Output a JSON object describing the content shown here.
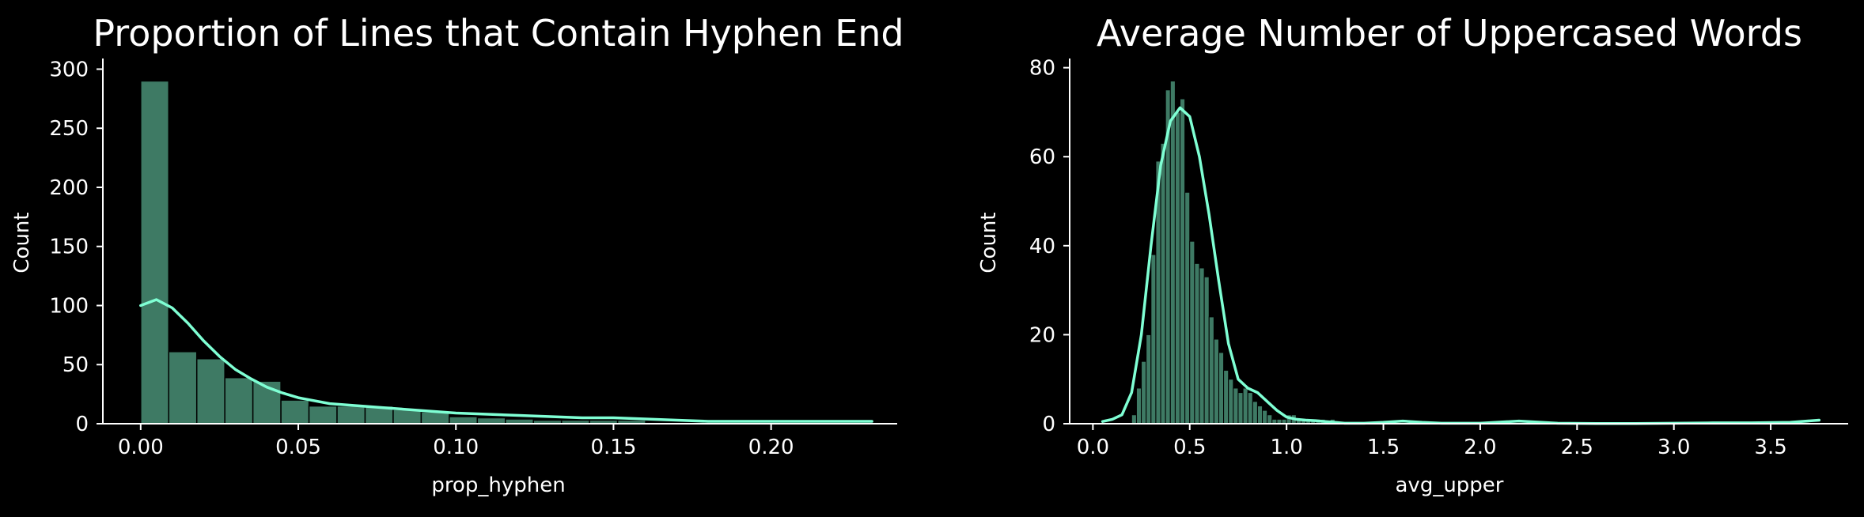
{
  "colors": {
    "background": "#000000",
    "bar_fill": "#3e7a64",
    "bar_edge": "#000000",
    "kde_line": "#7fffd4",
    "text": "#ffffff"
  },
  "chart_data": [
    {
      "type": "bar",
      "title": "Proportion of Lines that Contain Hyphen End",
      "xlabel": "prop_hyphen",
      "ylabel": "Count",
      "xlim": [
        -0.012,
        0.24
      ],
      "ylim": [
        0,
        305
      ],
      "xticks": [
        0.0,
        0.05,
        0.1,
        0.15,
        0.2
      ],
      "xtick_labels": [
        "0.00",
        "0.05",
        "0.10",
        "0.15",
        "0.20"
      ],
      "yticks": [
        0,
        50,
        100,
        150,
        200,
        250,
        300
      ],
      "ytick_labels": [
        "0",
        "50",
        "100",
        "150",
        "200",
        "250",
        "300"
      ],
      "bin_edges": [
        0.0,
        0.0089,
        0.0178,
        0.0267,
        0.0356,
        0.0445,
        0.0534,
        0.0623,
        0.0712,
        0.0801,
        0.089,
        0.0979,
        0.1068,
        0.1157,
        0.1246,
        0.1335,
        0.1424,
        0.1513,
        0.1602
      ],
      "values": [
        290,
        61,
        55,
        39,
        36,
        20,
        15,
        15,
        15,
        12,
        10,
        6,
        5,
        4,
        3,
        3,
        3,
        3
      ],
      "kde": {
        "x": [
          0.0,
          0.005,
          0.01,
          0.015,
          0.02,
          0.025,
          0.03,
          0.035,
          0.04,
          0.045,
          0.05,
          0.06,
          0.07,
          0.08,
          0.09,
          0.1,
          0.11,
          0.12,
          0.13,
          0.14,
          0.15,
          0.16,
          0.17,
          0.18,
          0.19,
          0.2,
          0.21,
          0.22,
          0.232
        ],
        "y": [
          100,
          105,
          98,
          85,
          70,
          57,
          46,
          38,
          31,
          26,
          22,
          17,
          15,
          13,
          11,
          9,
          8,
          7,
          6,
          5,
          5,
          4,
          3,
          2,
          2,
          2,
          2,
          2,
          2
        ]
      }
    },
    {
      "type": "bar",
      "title": "Average Number of Uppercased Words",
      "xlabel": "avg_upper",
      "ylabel": "Count",
      "xlim": [
        -0.12,
        3.9
      ],
      "ylim": [
        0,
        81
      ],
      "xticks": [
        0.0,
        0.5,
        1.0,
        1.5,
        2.0,
        2.5,
        3.0,
        3.5
      ],
      "xtick_labels": [
        "0.0",
        "0.5",
        "1.0",
        "1.5",
        "2.0",
        "2.5",
        "3.0",
        "3.5"
      ],
      "yticks": [
        0,
        20,
        40,
        60,
        80
      ],
      "ytick_labels": [
        "0",
        "20",
        "40",
        "60",
        "80"
      ],
      "bin_edges": [
        0.2,
        0.225,
        0.25,
        0.275,
        0.3,
        0.325,
        0.35,
        0.375,
        0.4,
        0.425,
        0.45,
        0.475,
        0.5,
        0.525,
        0.55,
        0.575,
        0.6,
        0.625,
        0.65,
        0.675,
        0.7,
        0.725,
        0.75,
        0.775,
        0.8,
        0.825,
        0.85,
        0.875,
        0.9,
        0.925,
        0.95,
        0.975,
        1.0,
        1.025,
        1.05,
        1.075,
        1.1,
        1.125,
        1.15,
        1.175,
        1.2,
        1.225,
        1.25
      ],
      "values": [
        2,
        8,
        14,
        20,
        38,
        59,
        63,
        75,
        77,
        70,
        73,
        52,
        41,
        36,
        35,
        33,
        24,
        19,
        16,
        12,
        10,
        8,
        7,
        8,
        7,
        5,
        4,
        3,
        2,
        1,
        1,
        1,
        2,
        2,
        1,
        1,
        1,
        1,
        1,
        1,
        0,
        1
      ],
      "kde": {
        "x": [
          0.05,
          0.1,
          0.15,
          0.2,
          0.25,
          0.3,
          0.35,
          0.4,
          0.45,
          0.5,
          0.55,
          0.6,
          0.65,
          0.7,
          0.75,
          0.8,
          0.85,
          0.9,
          0.95,
          1.0,
          1.05,
          1.1,
          1.15,
          1.2,
          1.25,
          1.3,
          1.4,
          1.5,
          1.6,
          1.7,
          1.8,
          2.0,
          2.2,
          2.4,
          2.6,
          2.8,
          3.0,
          3.2,
          3.4,
          3.6,
          3.75
        ],
        "y": [
          0.5,
          1,
          2,
          7,
          20,
          40,
          58,
          68,
          71,
          69,
          60,
          47,
          32,
          18,
          10,
          8,
          7,
          5,
          3,
          1.5,
          1,
          0.8,
          0.7,
          0.5,
          0.3,
          0.1,
          0.1,
          0.3,
          0.6,
          0.3,
          0.1,
          0.1,
          0.6,
          0.1,
          0.05,
          0.05,
          0.1,
          0.2,
          0.2,
          0.3,
          0.8
        ]
      }
    }
  ]
}
